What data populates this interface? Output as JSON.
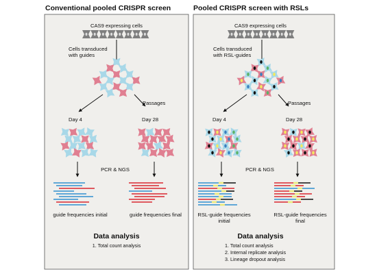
{
  "colors": {
    "panel_bg": "#f0efec",
    "panel_border": "#555555",
    "cas9_cell": "#7f7f7f",
    "cell_blue": "#a8d8e8",
    "cell_red": "#e07f91",
    "read_blue": "#2f8fd0",
    "read_red": "#d9272e",
    "read_black": "#111111",
    "barcode_yellow": "#ecea7e",
    "nucleus_black": "#111111",
    "nucleus_yellow": "#f4ea5c",
    "nucleus_blue": "#3a7fbf",
    "nucleus_green": "#5bb366",
    "arrow": "#111111"
  },
  "left": {
    "title": "Conventional pooled CRISPR screen",
    "cas9_label": "CAS9 expressing cells",
    "transduced_label_1": "Cells transduced",
    "transduced_label_2": "with guides",
    "passages_label": "Passages",
    "day4_label": "Day 4",
    "day28_label": "Day 28",
    "pcr_label": "PCR & NGS",
    "freq_initial_1": "guide frequencies initial",
    "freq_initial_2": "",
    "freq_final_1": "guide frequencies final",
    "freq_final_2": "",
    "data_analysis_title": "Data analysis",
    "analysis_items": [
      "1. Total count analysis"
    ]
  },
  "right": {
    "title": "Pooled CRISPR screen with RSLs",
    "cas9_label": "CAS9 expressing cells",
    "transduced_label_1": "Cells transduced",
    "transduced_label_2": "with RSL-guides",
    "passages_label": "Passages",
    "day4_label": "Day 4",
    "day28_label": "Day 28",
    "pcr_label": "PCR & NGS",
    "freq_initial_1": "RSL-guide frequencies",
    "freq_initial_2": "initial",
    "freq_final_1": "RSL-guide frequencies",
    "freq_final_2": "final",
    "data_analysis_title": "Data analysis",
    "analysis_items": [
      "1. Total count analysis",
      "2. Internal replicate analysis",
      "3. Lineage dropout analysis"
    ]
  }
}
